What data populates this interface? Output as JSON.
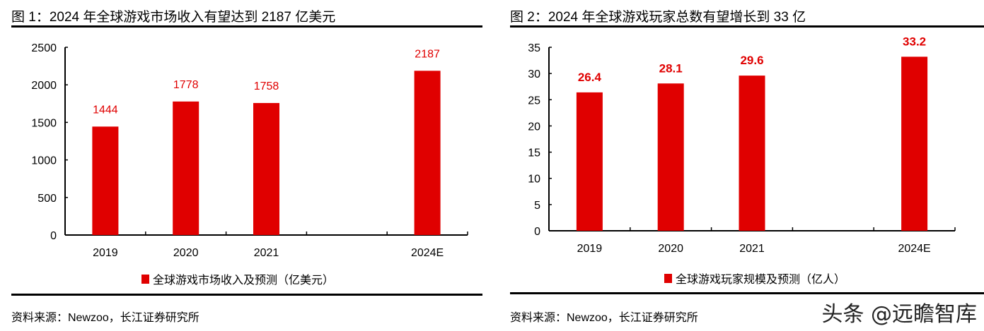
{
  "chart_data": [
    {
      "type": "bar",
      "title": "图 1：2024 年全球游戏市场收入有望达到 2187 亿美元",
      "categories": [
        "2019",
        "2020",
        "2021",
        "",
        "2024E"
      ],
      "values": [
        1444,
        1778,
        1758,
        null,
        2187
      ],
      "data_labels": [
        "1444",
        "1778",
        "1758",
        "",
        "2187"
      ],
      "legend": "全球游戏市场收入及预测（亿美元）",
      "yticks": [
        "0",
        "500",
        "1000",
        "1500",
        "2000",
        "2500"
      ],
      "ylim": [
        0,
        2500
      ],
      "grid": false,
      "legend_position": "bottom",
      "label_bold": false,
      "source": "资料来源：Newzoo，长江证券研究所"
    },
    {
      "type": "bar",
      "title": "图 2：2024 年全球游戏玩家总数有望增长到 33 亿",
      "categories": [
        "2019",
        "2020",
        "2021",
        "",
        "2024E"
      ],
      "values": [
        26.4,
        28.1,
        29.6,
        null,
        33.2
      ],
      "data_labels": [
        "26.4",
        "28.1",
        "29.6",
        "",
        "33.2"
      ],
      "legend": "全球游戏玩家规模及预测（亿人）",
      "yticks": [
        "0",
        "5",
        "10",
        "15",
        "20",
        "25",
        "30",
        "35"
      ],
      "ylim": [
        0,
        35
      ],
      "grid": false,
      "legend_position": "bottom",
      "label_bold": true,
      "source": "资料来源：Newzoo，长江证券研究所"
    }
  ],
  "colors": {
    "bar": "#e00000",
    "label": "#e00000"
  },
  "watermark": "头条 @远瞻智库"
}
